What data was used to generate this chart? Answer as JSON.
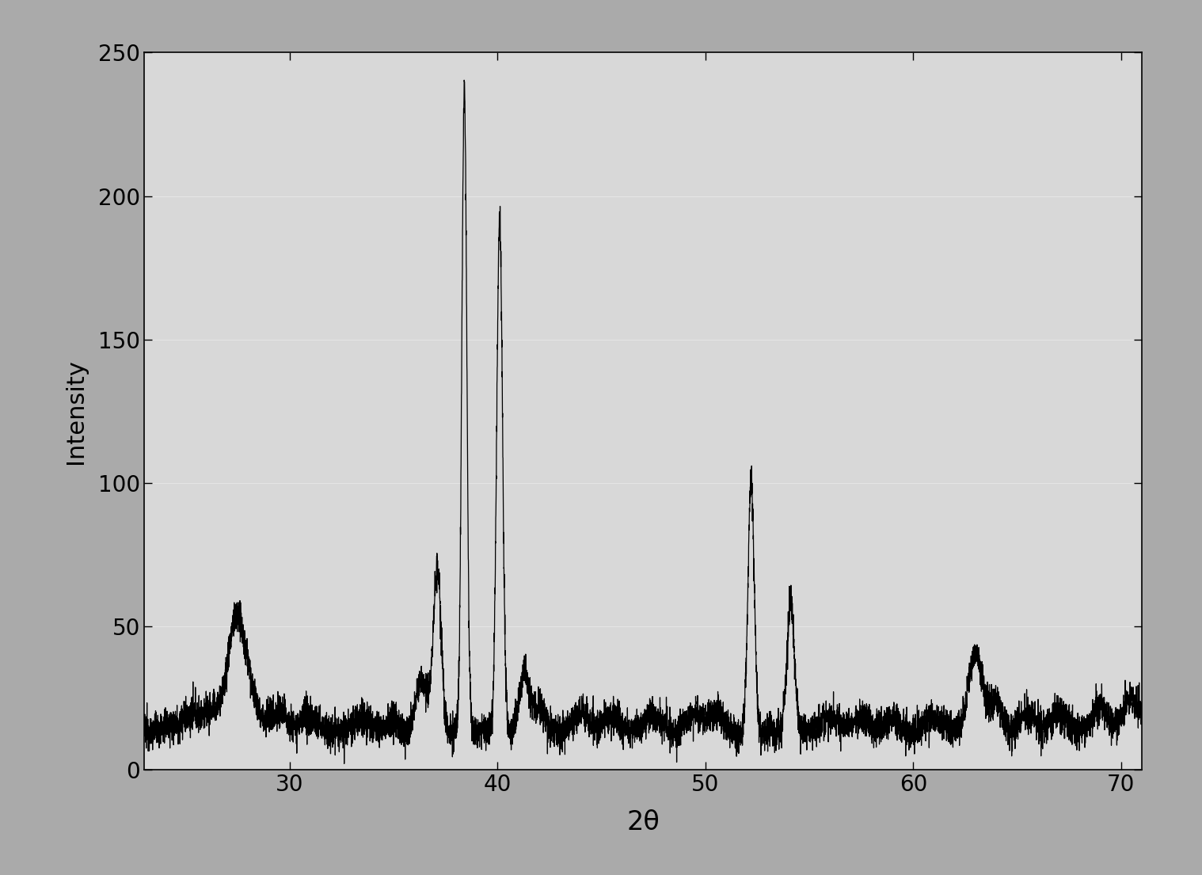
{
  "xlabel": "2θ",
  "ylabel": "Intensity",
  "xlim": [
    23,
    71
  ],
  "ylim": [
    0,
    250
  ],
  "xticks": [
    30,
    40,
    50,
    60,
    70
  ],
  "yticks": [
    0,
    50,
    100,
    150,
    200,
    250
  ],
  "line_color": "#000000",
  "plot_bg_color": "#d8d8d8",
  "figure_bg_color": "#aaaaaa",
  "noise_seed": 12345,
  "baseline": 13,
  "noise_amplitude": 3.0
}
